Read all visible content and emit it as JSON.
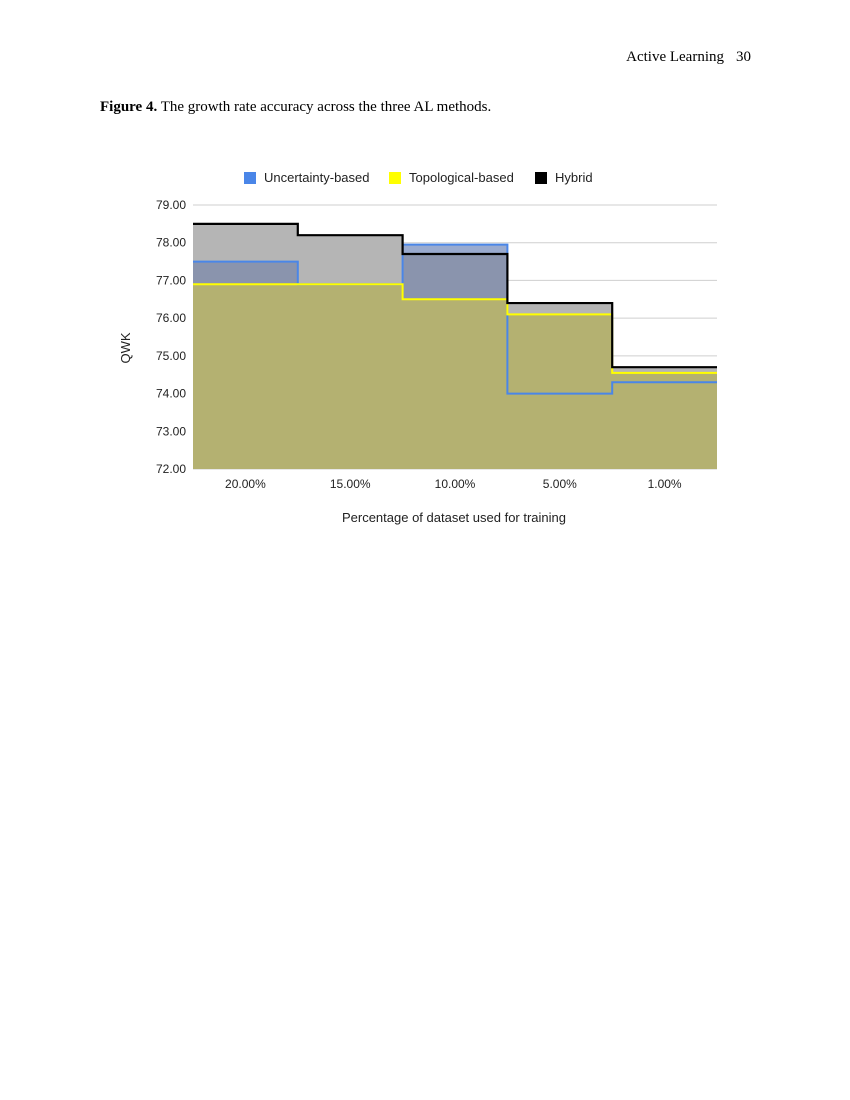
{
  "header": {
    "running_title": "Active Learning",
    "page_number": "30"
  },
  "figure": {
    "label": "Figure 4.",
    "caption": "The growth rate accuracy across the three AL methods."
  },
  "chart_data": {
    "type": "area",
    "step": true,
    "categories": [
      "20.00%",
      "15.00%",
      "10.00%",
      "5.00%",
      "1.00%"
    ],
    "xlabel": "Percentage of dataset used for training",
    "ylabel": "QWK",
    "ylim": [
      72,
      79
    ],
    "yticks": [
      "72.00",
      "73.00",
      "74.00",
      "75.00",
      "76.00",
      "77.00",
      "78.00",
      "79.00"
    ],
    "grid": true,
    "legend_position": "top",
    "series": [
      {
        "name": "Hybrid",
        "values": [
          78.5,
          78.2,
          77.7,
          76.4,
          74.7
        ],
        "color": "#000000",
        "fill": "#b5b5b5"
      },
      {
        "name": "Uncertainty-based",
        "values": [
          77.5,
          76.9,
          77.95,
          74.0,
          74.3
        ],
        "color": "#4a86e8",
        "fill": "#9aabcf"
      },
      {
        "name": "Topological-based",
        "values": [
          76.9,
          76.9,
          76.5,
          76.1,
          74.55
        ],
        "color": "#ffff00",
        "fill": "#b4b171"
      }
    ],
    "legend_order": [
      "Uncertainty-based",
      "Topological-based",
      "Hybrid"
    ]
  }
}
